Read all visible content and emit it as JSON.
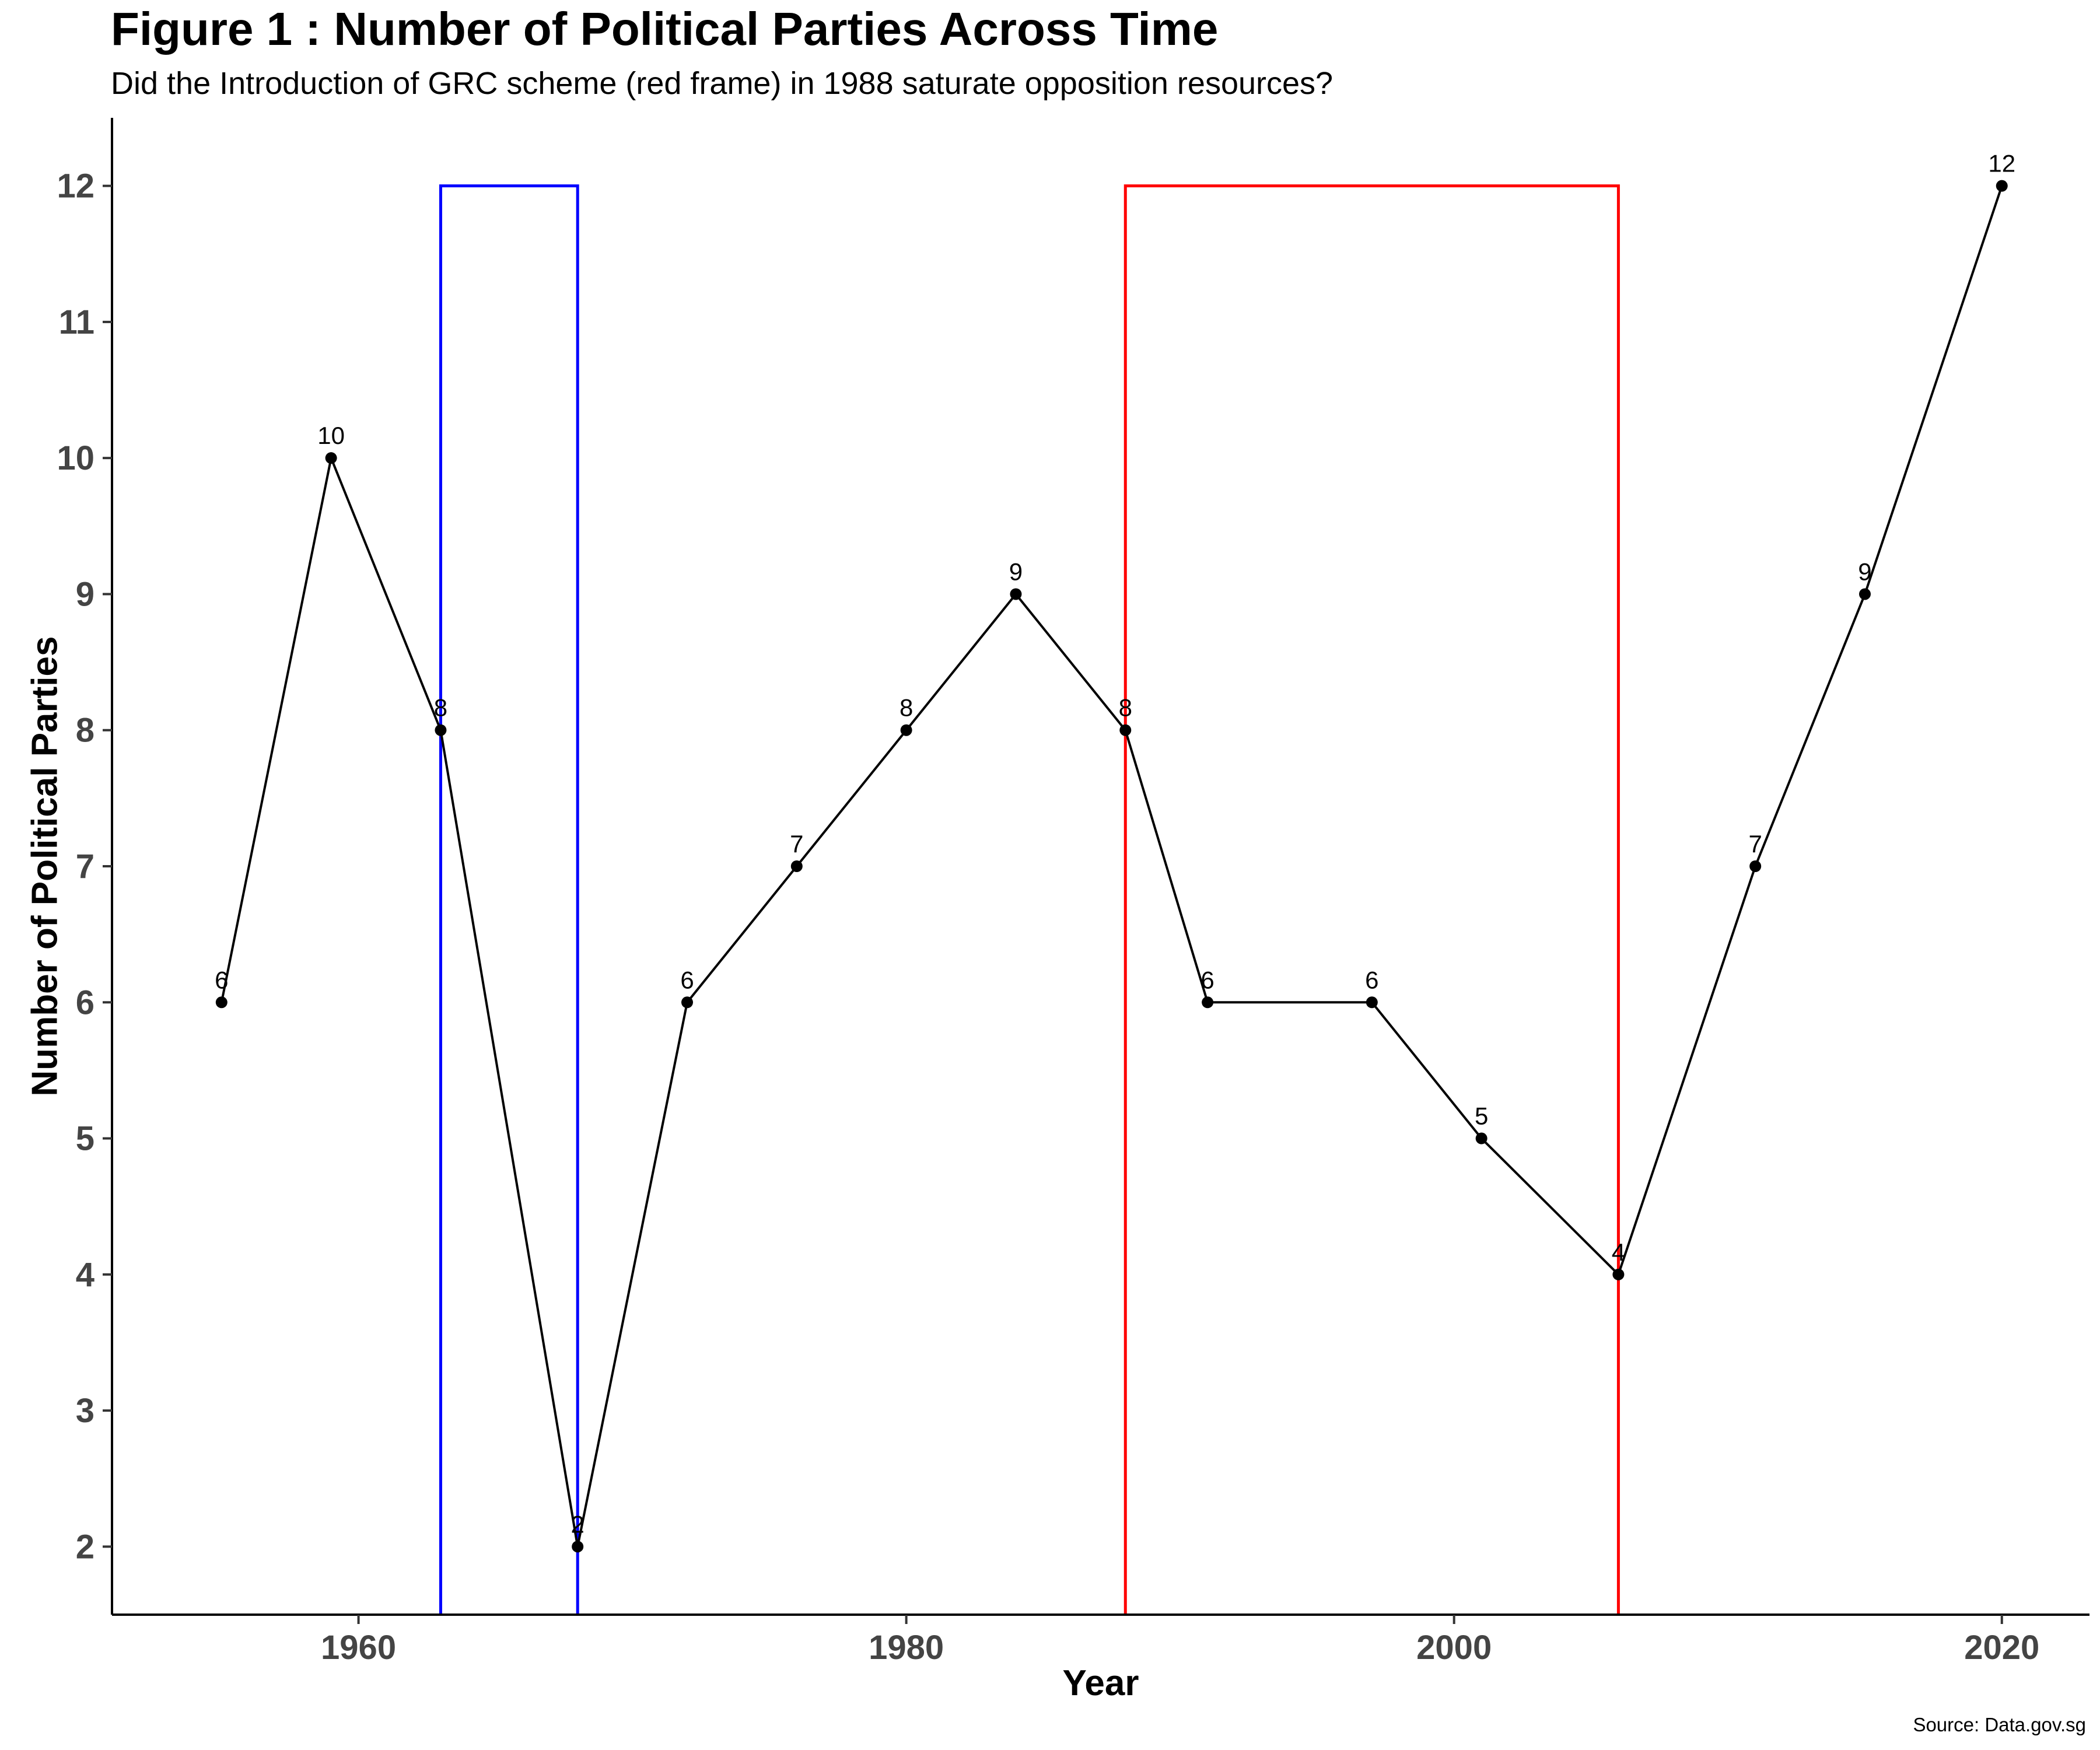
{
  "chart_data": {
    "type": "line",
    "title": "Figure 1 : Number of Political Parties Across Time",
    "subtitle": "Did the Introduction of GRC scheme (red frame) in 1988 saturate opposition resources?",
    "caption": "Source: Data.gov.sg",
    "xlabel": "Year",
    "ylabel": "Number of Political Parties",
    "x": [
      1955,
      1959,
      1963,
      1968,
      1972,
      1976,
      1980,
      1984,
      1988,
      1991,
      1997,
      2001,
      2006,
      2011,
      2015,
      2020
    ],
    "series": [
      {
        "values": [
          6,
          10,
          8,
          2,
          6,
          7,
          8,
          9,
          8,
          6,
          6,
          5,
          4,
          7,
          9,
          12
        ]
      }
    ],
    "xlim": [
      1951,
      2023.2
    ],
    "ylim": [
      1.5,
      12.5
    ],
    "xticks": [
      1960,
      1980,
      2000,
      2020
    ],
    "yticks": [
      2,
      3,
      4,
      5,
      6,
      7,
      8,
      9,
      10,
      11,
      12
    ],
    "highlight_frames": [
      {
        "x_start": 1963,
        "x_end": 1968,
        "y_start": 1.5,
        "y_end": 12,
        "color": "#0000ff"
      },
      {
        "x_start": 1988,
        "x_end": 2006,
        "y_start": 1.5,
        "y_end": 12,
        "color": "#ff0000"
      }
    ],
    "line_color": "#000000",
    "grid": false,
    "legend": "none"
  }
}
